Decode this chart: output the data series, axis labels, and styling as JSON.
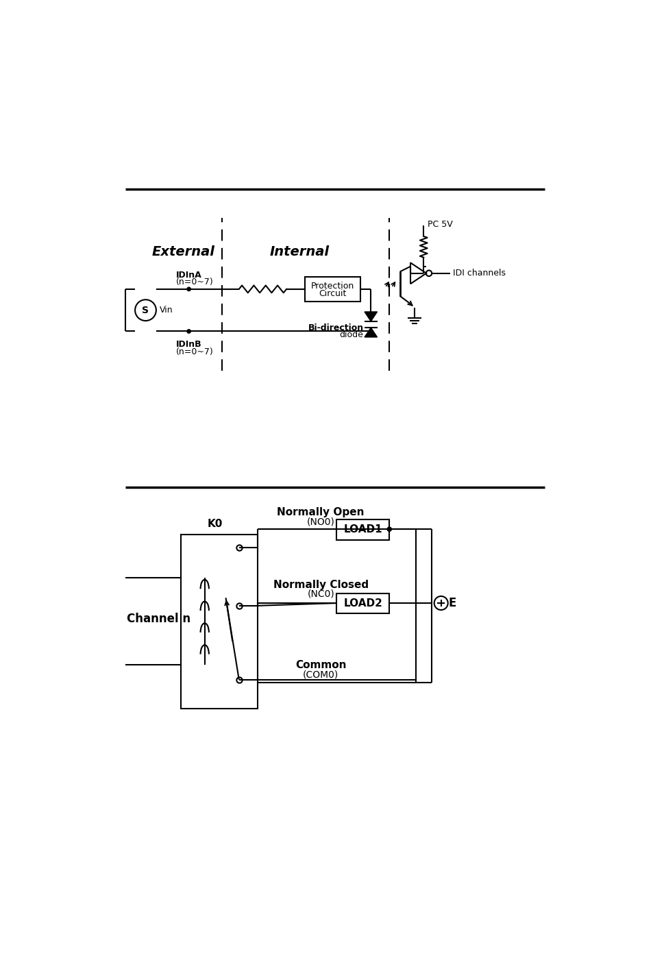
{
  "bg_color": "#ffffff",
  "line_color": "#000000",
  "section1": {
    "label_external": "External",
    "label_internal": "Internal",
    "label_pc5v": "PC 5V",
    "label_idi": "IDI channels",
    "label_idina": "IDInA",
    "label_idina2": "(n=0~7)",
    "label_idinb": "IDInB",
    "label_idinb2": "(n=0~7)",
    "label_vin": "Vin",
    "label_prot1": "Protection",
    "label_prot2": "Circuit",
    "label_bidir1": "Bi-direction",
    "label_bidir2": "diode"
  },
  "section2": {
    "label_norm_open": "Normally Open",
    "label_no0": "(NO0)",
    "label_norm_closed": "Normally Closed",
    "label_nc0": "(NC0)",
    "label_common": "Common",
    "label_com0": "(COM0)",
    "label_load1": "LOAD1",
    "label_load2": "LOAD2",
    "label_k0": "K0",
    "label_channel": "Channel n",
    "label_e": "E"
  }
}
